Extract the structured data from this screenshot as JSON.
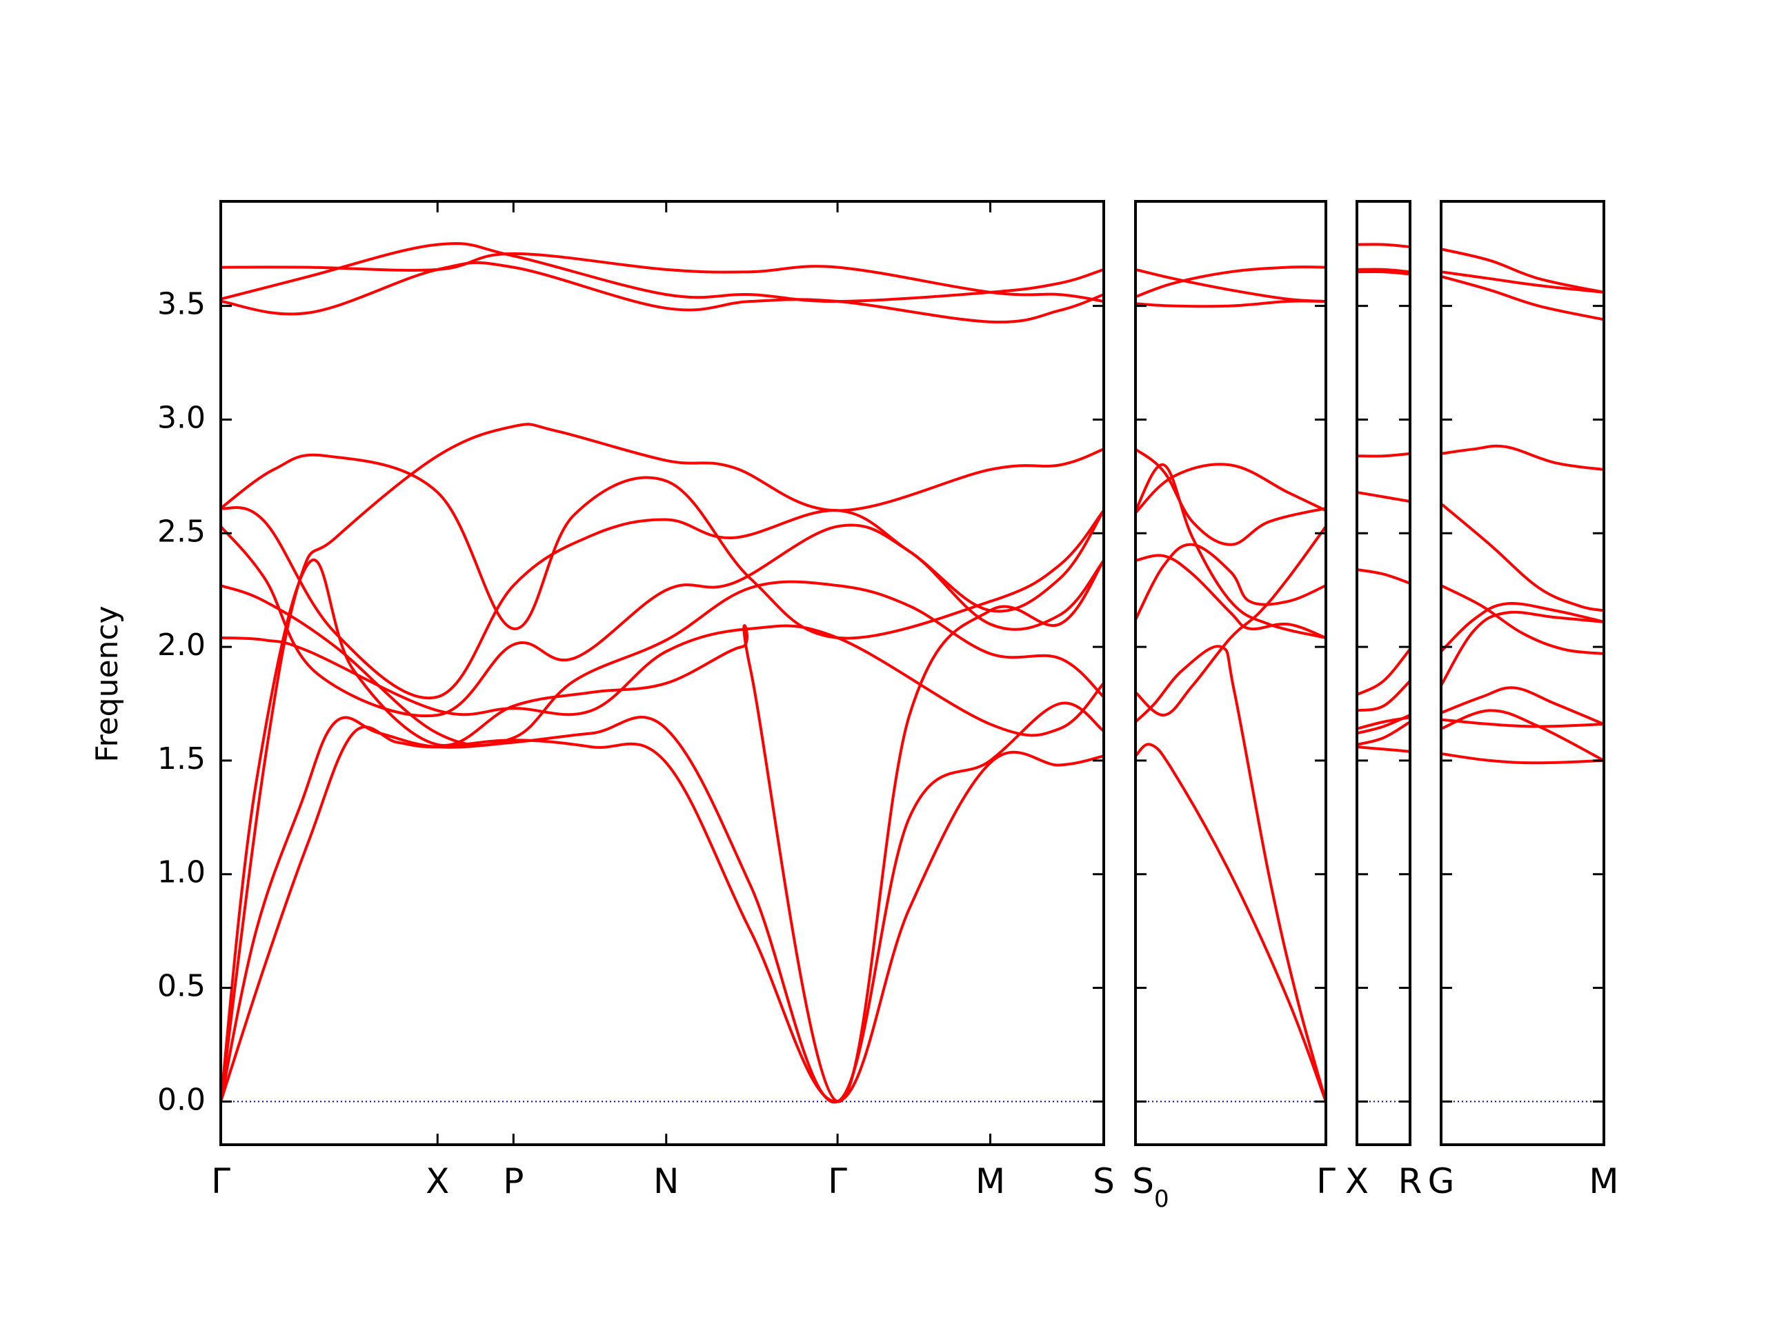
{
  "chart_data": {
    "type": "line",
    "title": "",
    "ylabel": "Frequency",
    "ylim": [
      -0.19,
      3.96
    ],
    "y_ticks": [
      "0.0",
      "0.5",
      "1.0",
      "1.5",
      "2.0",
      "2.5",
      "3.0",
      "3.5"
    ],
    "y_tick_values": [
      0.0,
      0.5,
      1.0,
      1.5,
      2.0,
      2.5,
      3.0,
      3.5
    ],
    "grid": false,
    "line_color": "#ff0000",
    "zero_line_color": "#0000cc",
    "panels": [
      {
        "name": "Γ-X-P-N-Γ-M-S",
        "labels": [
          "Γ",
          "X",
          "P",
          "N",
          "Γ",
          "M",
          "S"
        ],
        "label_positions": [
          0,
          0.2455,
          0.3315,
          0.5045,
          0.6985,
          0.8715,
          1.0
        ],
        "series": [
          {
            "x": [
              0,
              0.05,
              0.1,
              0.15,
              0.2,
              0.2455,
              0.3315,
              0.42,
              0.5045,
              0.6,
              0.6985,
              0.78,
              0.8715,
              0.95,
              1.0
            ],
            "y": [
              0,
              0.6,
              1.15,
              1.62,
              1.58,
              1.56,
              1.59,
              1.56,
              1.49,
              0.75,
              0,
              0.85,
              1.49,
              1.48,
              1.52
            ]
          },
          {
            "x": [
              0,
              0.04,
              0.09,
              0.13,
              0.18,
              0.2455,
              0.3315,
              0.42,
              0.5045,
              0.6,
              0.6985,
              0.78,
              0.8715,
              0.95,
              1.0
            ],
            "y": [
              0,
              0.75,
              1.3,
              1.67,
              1.62,
              1.56,
              1.58,
              1.62,
              1.64,
              0.95,
              0,
              1.25,
              1.5,
              1.75,
              1.63
            ]
          },
          {
            "x": [
              0,
              0.04,
              0.1,
              0.15,
              0.2455,
              0.3315,
              0.42,
              0.5045,
              0.59,
              0.6,
              0.6985,
              0.78,
              0.8715,
              0.95,
              1.0
            ],
            "y": [
              0,
              1.4,
              2.37,
              1.9,
              1.57,
              1.74,
              1.8,
              1.84,
              2.0,
              1.9,
              0,
              1.7,
              2.16,
              2.1,
              2.38
            ]
          },
          {
            "x": [
              0,
              0.05,
              0.09,
              0.13,
              0.2455,
              0.3315,
              0.38,
              0.5045,
              0.58,
              0.6985,
              0.8715,
              0.95,
              1.0
            ],
            "y": [
              0,
              1.5,
              2.3,
              2.48,
              2.84,
              2.97,
              2.95,
              2.82,
              2.79,
              2.6,
              2.78,
              2.8,
              2.87
            ]
          },
          {
            "x": [
              0,
              0.05,
              0.1,
              0.2455,
              0.3315,
              0.42,
              0.5045,
              0.6,
              0.6985,
              0.8715,
              0.95,
              1.0
            ],
            "y": [
              2.04,
              2.03,
              1.98,
              1.72,
              1.73,
              1.72,
              1.98,
              2.08,
              2.04,
              1.66,
              1.64,
              1.84
            ]
          },
          {
            "x": [
              0,
              0.05,
              0.13,
              0.2455,
              0.3315,
              0.4,
              0.5045,
              0.6,
              0.6985,
              0.78,
              0.8715,
              0.95,
              1.0
            ],
            "y": [
              2.27,
              2.2,
              2.0,
              1.62,
              1.6,
              1.85,
              2.03,
              2.26,
              2.27,
              2.18,
              1.97,
              1.95,
              1.78
            ]
          },
          {
            "x": [
              0,
              0.05,
              0.11,
              0.2455,
              0.3315,
              0.4,
              0.5045,
              0.58,
              0.6985,
              0.78,
              0.8715,
              0.95,
              1.0
            ],
            "y": [
              2.53,
              2.3,
              1.88,
              1.7,
              2.01,
              1.95,
              2.25,
              2.28,
              2.53,
              2.42,
              2.1,
              2.14,
              2.38
            ]
          },
          {
            "x": [
              0,
              0.05,
              0.13,
              0.2455,
              0.3315,
              0.42,
              0.5045,
              0.58,
              0.6985,
              0.78,
              0.8715,
              0.95,
              1.0
            ],
            "y": [
              2.61,
              2.55,
              2.06,
              1.78,
              2.27,
              2.49,
              2.56,
              2.48,
              2.6,
              2.42,
              2.16,
              2.3,
              2.6
            ]
          },
          {
            "x": [
              0,
              0.06,
              0.12,
              0.2455,
              0.3315,
              0.4,
              0.5045,
              0.6,
              0.6985,
              0.8715,
              0.95,
              1.0
            ],
            "y": [
              2.61,
              2.78,
              2.84,
              2.68,
              2.08,
              2.58,
              2.73,
              2.3,
              2.04,
              2.2,
              2.36,
              2.6
            ]
          },
          {
            "x": [
              0,
              0.1,
              0.2455,
              0.3315,
              0.5045,
              0.6,
              0.6985,
              0.8715,
              0.95,
              1.0
            ],
            "y": [
              3.52,
              3.47,
              3.66,
              3.67,
              3.49,
              3.52,
              3.52,
              3.43,
              3.48,
              3.55
            ]
          },
          {
            "x": [
              0,
              0.1,
              0.2455,
              0.3315,
              0.5045,
              0.6,
              0.6985,
              0.8715,
              0.95,
              1.0
            ],
            "y": [
              3.53,
              3.63,
              3.77,
              3.72,
              3.55,
              3.55,
              3.52,
              3.56,
              3.6,
              3.66
            ]
          },
          {
            "x": [
              0,
              0.1,
              0.2455,
              0.3315,
              0.5045,
              0.6,
              0.6985,
              0.8715,
              0.95,
              1.0
            ],
            "y": [
              3.67,
              3.67,
              3.66,
              3.73,
              3.66,
              3.65,
              3.67,
              3.56,
              3.55,
              3.52
            ]
          }
        ]
      },
      {
        "name": "S0-Γ",
        "labels": [
          "S0",
          "Γ"
        ],
        "label_positions": [
          0,
          1.0
        ],
        "series": [
          {
            "x": [
              0,
              0.08,
              0.2,
              0.5,
              0.8,
              1.0
            ],
            "y": [
              1.52,
              1.57,
              1.45,
              1.0,
              0.45,
              0
            ]
          },
          {
            "x": [
              0,
              0.1,
              0.25,
              0.45,
              0.52,
              0.7,
              0.85,
              1.0
            ],
            "y": [
              1.67,
              1.75,
              1.9,
              2.0,
              1.8,
              1.0,
              0.45,
              0
            ]
          },
          {
            "x": [
              0,
              0.15,
              0.3,
              0.5,
              0.65,
              0.8,
              1.0
            ],
            "y": [
              1.8,
              1.7,
              1.83,
              2.04,
              2.15,
              2.3,
              2.53
            ]
          },
          {
            "x": [
              0,
              0.15,
              0.3,
              0.5,
              0.6,
              0.8,
              1.0
            ],
            "y": [
              2.12,
              2.36,
              2.45,
              2.33,
              2.2,
              2.2,
              2.27
            ]
          },
          {
            "x": [
              0,
              0.15,
              0.3,
              0.5,
              0.6,
              0.8,
              1.0
            ],
            "y": [
              2.38,
              2.4,
              2.32,
              2.15,
              2.08,
              2.1,
              2.04
            ]
          },
          {
            "x": [
              0,
              0.15,
              0.3,
              0.5,
              0.7,
              1.0
            ],
            "y": [
              2.6,
              2.8,
              2.48,
              2.2,
              2.1,
              2.04
            ]
          },
          {
            "x": [
              0,
              0.15,
              0.3,
              0.5,
              0.7,
              1.0
            ],
            "y": [
              2.87,
              2.77,
              2.55,
              2.45,
              2.55,
              2.61
            ]
          },
          {
            "x": [
              0,
              0.2,
              0.5,
              0.8,
              1.0
            ],
            "y": [
              2.59,
              2.75,
              2.8,
              2.68,
              2.6
            ]
          },
          {
            "x": [
              0,
              0.2,
              0.5,
              0.8,
              1.0
            ],
            "y": [
              3.54,
              3.6,
              3.65,
              3.67,
              3.67
            ]
          },
          {
            "x": [
              0,
              0.2,
              0.5,
              0.8,
              1.0
            ],
            "y": [
              3.51,
              3.5,
              3.5,
              3.52,
              3.52
            ]
          },
          {
            "x": [
              0,
              0.2,
              0.5,
              0.8,
              1.0
            ],
            "y": [
              3.66,
              3.62,
              3.57,
              3.53,
              3.52
            ]
          }
        ]
      },
      {
        "name": "X-R",
        "labels": [
          "X",
          "R"
        ],
        "label_positions": [
          0,
          1.0
        ],
        "series": [
          {
            "x": [
              0,
              0.5,
              1.0
            ],
            "y": [
              1.56,
              1.55,
              1.54
            ]
          },
          {
            "x": [
              0,
              0.5,
              1.0
            ],
            "y": [
              1.57,
              1.6,
              1.67
            ]
          },
          {
            "x": [
              0,
              0.5,
              1.0
            ],
            "y": [
              1.62,
              1.65,
              1.7
            ]
          },
          {
            "x": [
              0,
              0.5,
              1.0
            ],
            "y": [
              1.64,
              1.67,
              1.69
            ]
          },
          {
            "x": [
              0,
              0.5,
              1.0
            ],
            "y": [
              1.72,
              1.74,
              1.85
            ]
          },
          {
            "x": [
              0,
              0.5,
              1.0
            ],
            "y": [
              1.79,
              1.85,
              1.99
            ]
          },
          {
            "x": [
              0,
              0.5,
              1.0
            ],
            "y": [
              2.34,
              2.32,
              2.28
            ]
          },
          {
            "x": [
              0,
              0.5,
              1.0
            ],
            "y": [
              2.68,
              2.66,
              2.64
            ]
          },
          {
            "x": [
              0,
              0.5,
              1.0
            ],
            "y": [
              2.84,
              2.84,
              2.85
            ]
          },
          {
            "x": [
              0,
              0.5,
              1.0
            ],
            "y": [
              3.65,
              3.65,
              3.64
            ]
          },
          {
            "x": [
              0,
              0.5,
              1.0
            ],
            "y": [
              3.66,
              3.66,
              3.65
            ]
          },
          {
            "x": [
              0,
              0.5,
              1.0
            ],
            "y": [
              3.77,
              3.77,
              3.76
            ]
          }
        ]
      },
      {
        "name": "G-M",
        "labels": [
          "G",
          "M"
        ],
        "label_positions": [
          0,
          1.0
        ],
        "series": [
          {
            "x": [
              0,
              0.3,
              0.6,
              1.0
            ],
            "y": [
              1.53,
              1.5,
              1.49,
              1.5
            ]
          },
          {
            "x": [
              0,
              0.3,
              0.6,
              1.0
            ],
            "y": [
              1.64,
              1.72,
              1.65,
              1.5
            ]
          },
          {
            "x": [
              0,
              0.3,
              0.6,
              1.0
            ],
            "y": [
              1.68,
              1.66,
              1.65,
              1.66
            ]
          },
          {
            "x": [
              0,
              0.25,
              0.45,
              0.7,
              1.0
            ],
            "y": [
              1.71,
              1.78,
              1.82,
              1.75,
              1.66
            ]
          },
          {
            "x": [
              0,
              0.2,
              0.4,
              0.7,
              1.0
            ],
            "y": [
              1.83,
              2.07,
              2.15,
              2.13,
              2.11
            ]
          },
          {
            "x": [
              0,
              0.2,
              0.4,
              0.7,
              1.0
            ],
            "y": [
              1.98,
              2.12,
              2.19,
              2.16,
              2.11
            ]
          },
          {
            "x": [
              0,
              0.25,
              0.5,
              0.75,
              1.0
            ],
            "y": [
              2.27,
              2.18,
              2.06,
              1.99,
              1.97
            ]
          },
          {
            "x": [
              0,
              0.3,
              0.6,
              0.85,
              1.0
            ],
            "y": [
              2.63,
              2.45,
              2.26,
              2.18,
              2.16
            ]
          },
          {
            "x": [
              0,
              0.2,
              0.4,
              0.7,
              1.0
            ],
            "y": [
              2.85,
              2.87,
              2.88,
              2.81,
              2.78
            ]
          },
          {
            "x": [
              0,
              0.3,
              0.6,
              1.0
            ],
            "y": [
              3.63,
              3.57,
              3.5,
              3.44
            ]
          },
          {
            "x": [
              0,
              0.3,
              0.6,
              1.0
            ],
            "y": [
              3.65,
              3.62,
              3.59,
              3.56
            ]
          },
          {
            "x": [
              0,
              0.3,
              0.6,
              1.0
            ],
            "y": [
              3.75,
              3.7,
              3.62,
              3.56
            ]
          }
        ]
      }
    ]
  }
}
